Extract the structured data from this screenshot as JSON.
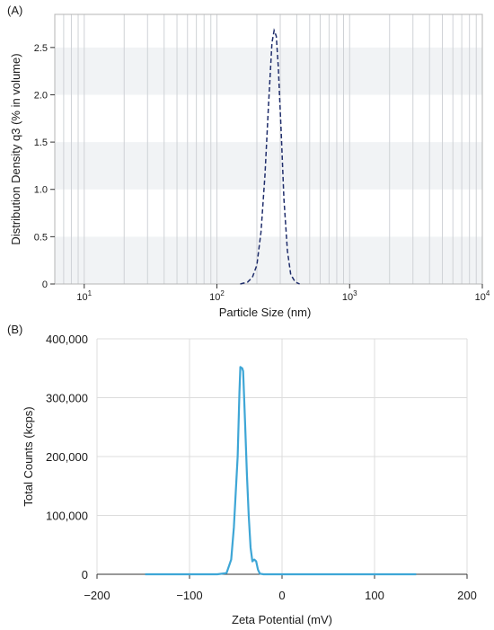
{
  "chart_data": [
    {
      "panel_label": "(A)",
      "type": "line",
      "xlabel": "Particle Size (nm)",
      "ylabel": "Distribution Density q3 (% in volume)",
      "x_scale": "log",
      "xlim": [
        6,
        10000
      ],
      "ylim": [
        0,
        2.85
      ],
      "x_ticks": [
        {
          "value": 10,
          "base": "10",
          "exp": "1"
        },
        {
          "value": 100,
          "base": "10",
          "exp": "2"
        },
        {
          "value": 1000,
          "base": "10",
          "exp": "3"
        },
        {
          "value": 10000,
          "base": "10",
          "exp": "4"
        }
      ],
      "y_ticks": [
        {
          "value": 0,
          "label": "0"
        },
        {
          "value": 0.5,
          "label": "0.5"
        },
        {
          "value": 1.0,
          "label": "1.0"
        },
        {
          "value": 1.5,
          "label": "1.5"
        },
        {
          "value": 2.0,
          "label": "2.0"
        },
        {
          "value": 2.5,
          "label": "2.5"
        }
      ],
      "grid": true,
      "line_color": "#1f2d6b",
      "line_style": "dashed",
      "series": [
        {
          "x": [
            150,
            170,
            185,
            200,
            215,
            230,
            245,
            260,
            270,
            280,
            290,
            305,
            320,
            340,
            360,
            390,
            420
          ],
          "y": [
            0,
            0.02,
            0.07,
            0.2,
            0.55,
            1.15,
            1.9,
            2.55,
            2.68,
            2.62,
            2.3,
            1.6,
            0.9,
            0.35,
            0.1,
            0.02,
            0
          ]
        }
      ]
    },
    {
      "panel_label": "(B)",
      "type": "line",
      "xlabel": "Zeta Potential (mV)",
      "ylabel": "Total Counts (kcps)",
      "xlim": [
        -200,
        200
      ],
      "ylim": [
        0,
        400000
      ],
      "x_ticks": [
        {
          "value": -200,
          "label": "−200"
        },
        {
          "value": -100,
          "label": "−100"
        },
        {
          "value": 0,
          "label": "0"
        },
        {
          "value": 100,
          "label": "100"
        },
        {
          "value": 200,
          "label": "200"
        }
      ],
      "y_ticks": [
        {
          "value": 0,
          "label": "0"
        },
        {
          "value": 100000,
          "label": "100,000"
        },
        {
          "value": 200000,
          "label": "200,000"
        },
        {
          "value": 300000,
          "label": "300,000"
        },
        {
          "value": 400000,
          "label": "400,000"
        }
      ],
      "grid": true,
      "line_color": "#3ea6d6",
      "series": [
        {
          "x": [
            -148,
            -70,
            -60,
            -55,
            -52,
            -48,
            -46,
            -45,
            -43,
            -42,
            -40,
            -38,
            -36,
            -34,
            -32,
            -30,
            -28,
            -26,
            -24,
            -20,
            -15,
            145
          ],
          "y": [
            0,
            0,
            2000,
            25000,
            80000,
            200000,
            310000,
            352000,
            350000,
            345000,
            260000,
            170000,
            100000,
            45000,
            22000,
            25000,
            22000,
            8000,
            1000,
            0,
            0,
            0
          ]
        }
      ]
    }
  ]
}
